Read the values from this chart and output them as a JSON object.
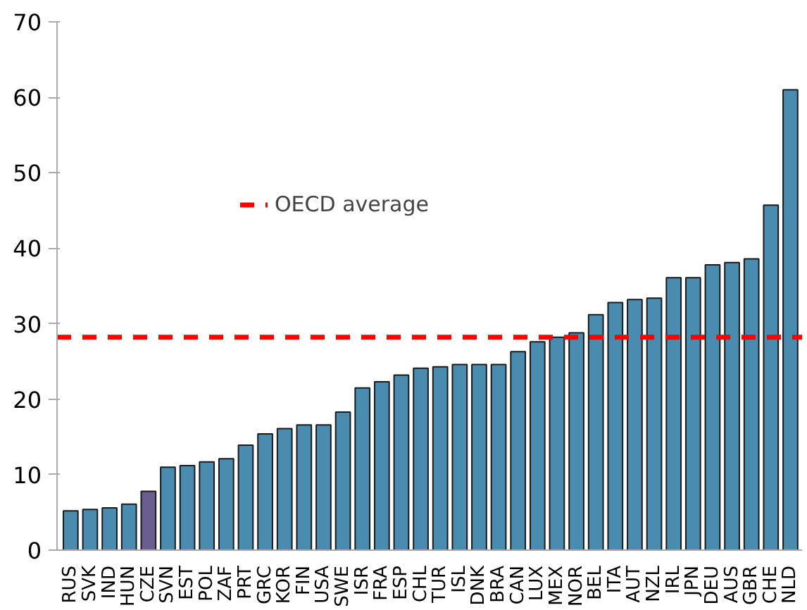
{
  "chart_data": {
    "type": "bar",
    "categories": [
      "RUS",
      "SVK",
      "IND",
      "HUN",
      "CZE",
      "SVN",
      "EST",
      "POL",
      "ZAF",
      "PRT",
      "GRC",
      "KOR",
      "FIN",
      "USA",
      "SWE",
      "ISR",
      "FRA",
      "ESP",
      "CHL",
      "TUR",
      "ISL",
      "DNK",
      "BRA",
      "CAN",
      "LUX",
      "MEX",
      "NOR",
      "BEL",
      "ITA",
      "AUT",
      "NZL",
      "IRL",
      "JPN",
      "DEU",
      "AUS",
      "GBR",
      "CHE",
      "NLD"
    ],
    "values": [
      5.2,
      5.4,
      5.6,
      6.1,
      7.8,
      11.0,
      11.2,
      11.7,
      12.1,
      13.9,
      15.4,
      16.1,
      16.6,
      16.6,
      18.3,
      21.5,
      22.3,
      23.2,
      24.1,
      24.3,
      24.6,
      24.6,
      24.6,
      26.3,
      27.6,
      28.2,
      28.8,
      31.2,
      32.8,
      33.2,
      33.4,
      36.1,
      36.1,
      37.8,
      38.1,
      38.6,
      45.7,
      61.0
    ],
    "colors": [
      "#4a8cb0",
      "#4a8cb0",
      "#4a8cb0",
      "#4a8cb0",
      "#6a5e8e",
      "#4a8cb0",
      "#4a8cb0",
      "#4a8cb0",
      "#4a8cb0",
      "#4a8cb0",
      "#4a8cb0",
      "#4a8cb0",
      "#4a8cb0",
      "#4a8cb0",
      "#4a8cb0",
      "#4a8cb0",
      "#4a8cb0",
      "#4a8cb0",
      "#4a8cb0",
      "#4a8cb0",
      "#4a8cb0",
      "#4a8cb0",
      "#4a8cb0",
      "#4a8cb0",
      "#4a8cb0",
      "#4a8cb0",
      "#4a8cb0",
      "#4a8cb0",
      "#4a8cb0",
      "#4a8cb0",
      "#4a8cb0",
      "#4a8cb0",
      "#4a8cb0",
      "#4a8cb0",
      "#4a8cb0",
      "#4a8cb0",
      "#4a8cb0",
      "#4a8cb0"
    ],
    "ylim": [
      0,
      70
    ],
    "yticks": [
      0,
      10,
      20,
      30,
      40,
      50,
      60,
      70
    ],
    "grid": false,
    "legend": "top left",
    "ref_lines": [
      {
        "axis": "y",
        "value": 28.2,
        "label": "OECD average",
        "color": "#ff0000",
        "line_style": "dashed"
      }
    ]
  }
}
